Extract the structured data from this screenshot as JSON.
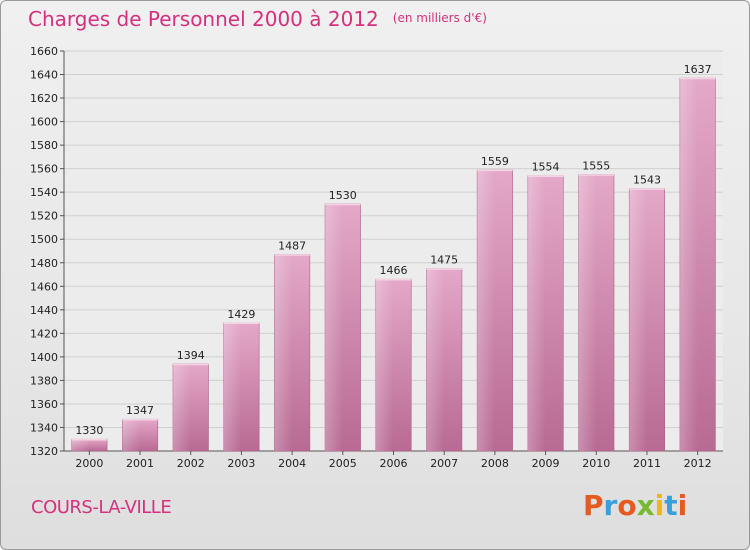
{
  "header": {
    "title": "Charges de Personnel 2000 à 2012",
    "subtitle": "(en milliers d'€)"
  },
  "footer": {
    "location": "COURS-LA-VILLE",
    "brand": "Proxiti"
  },
  "colors": {
    "accent": "#d6307e",
    "bar": "#d47ea8",
    "brand_letters": [
      "#e55b1f",
      "#3aa0dc",
      "#e55b1f",
      "#79b932",
      "#e9b81a",
      "#3aa0dc",
      "#e55b1f"
    ]
  },
  "chart_data": {
    "type": "bar",
    "title": "Charges de Personnel 2000 à 2012",
    "subtitle": "(en milliers d'€)",
    "categories": [
      "2000",
      "2001",
      "2002",
      "2003",
      "2004",
      "2005",
      "2006",
      "2007",
      "2008",
      "2009",
      "2010",
      "2011",
      "2012"
    ],
    "values": [
      1330,
      1347,
      1394,
      1429,
      1487,
      1530,
      1466,
      1475,
      1559,
      1554,
      1555,
      1543,
      1637
    ],
    "data_labels": [
      "1330",
      "1347",
      "1394",
      "1429",
      "1487",
      "1530",
      "1466",
      "1475",
      "1559",
      "1554",
      "1555",
      "1543",
      "1637"
    ],
    "yticks": [
      "1320",
      "1340",
      "1360",
      "1380",
      "1400",
      "1420",
      "1440",
      "1460",
      "1480",
      "1500",
      "1520",
      "1540",
      "1560",
      "1580",
      "1600",
      "1620",
      "1640",
      "1660"
    ],
    "ylim": [
      1320,
      1660
    ],
    "xlabel": "",
    "ylabel": "",
    "grid": true,
    "legend": "none"
  }
}
